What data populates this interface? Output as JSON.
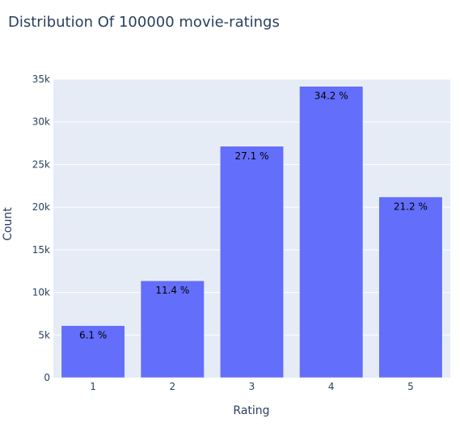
{
  "chart_data": {
    "type": "bar",
    "title": "Distribution Of 100000 movie-ratings",
    "xlabel": "Rating",
    "ylabel": "Count",
    "categories": [
      "1",
      "2",
      "3",
      "4",
      "5"
    ],
    "values": [
      6110,
      11370,
      27145,
      34174,
      21201
    ],
    "bar_labels": [
      "6.1 %",
      "11.4 %",
      "27.1 %",
      "34.2 %",
      "21.2 %"
    ],
    "ylim": [
      0,
      35000
    ],
    "yticks": [
      0,
      5000,
      10000,
      15000,
      20000,
      25000,
      30000,
      35000
    ],
    "ytick_labels": [
      "0",
      "5k",
      "10k",
      "15k",
      "20k",
      "25k",
      "30k",
      "35k"
    ],
    "grid": true,
    "bar_color": "#636efa",
    "plot_background": "#e5ecf6",
    "text_color": "#2a3f5f"
  }
}
